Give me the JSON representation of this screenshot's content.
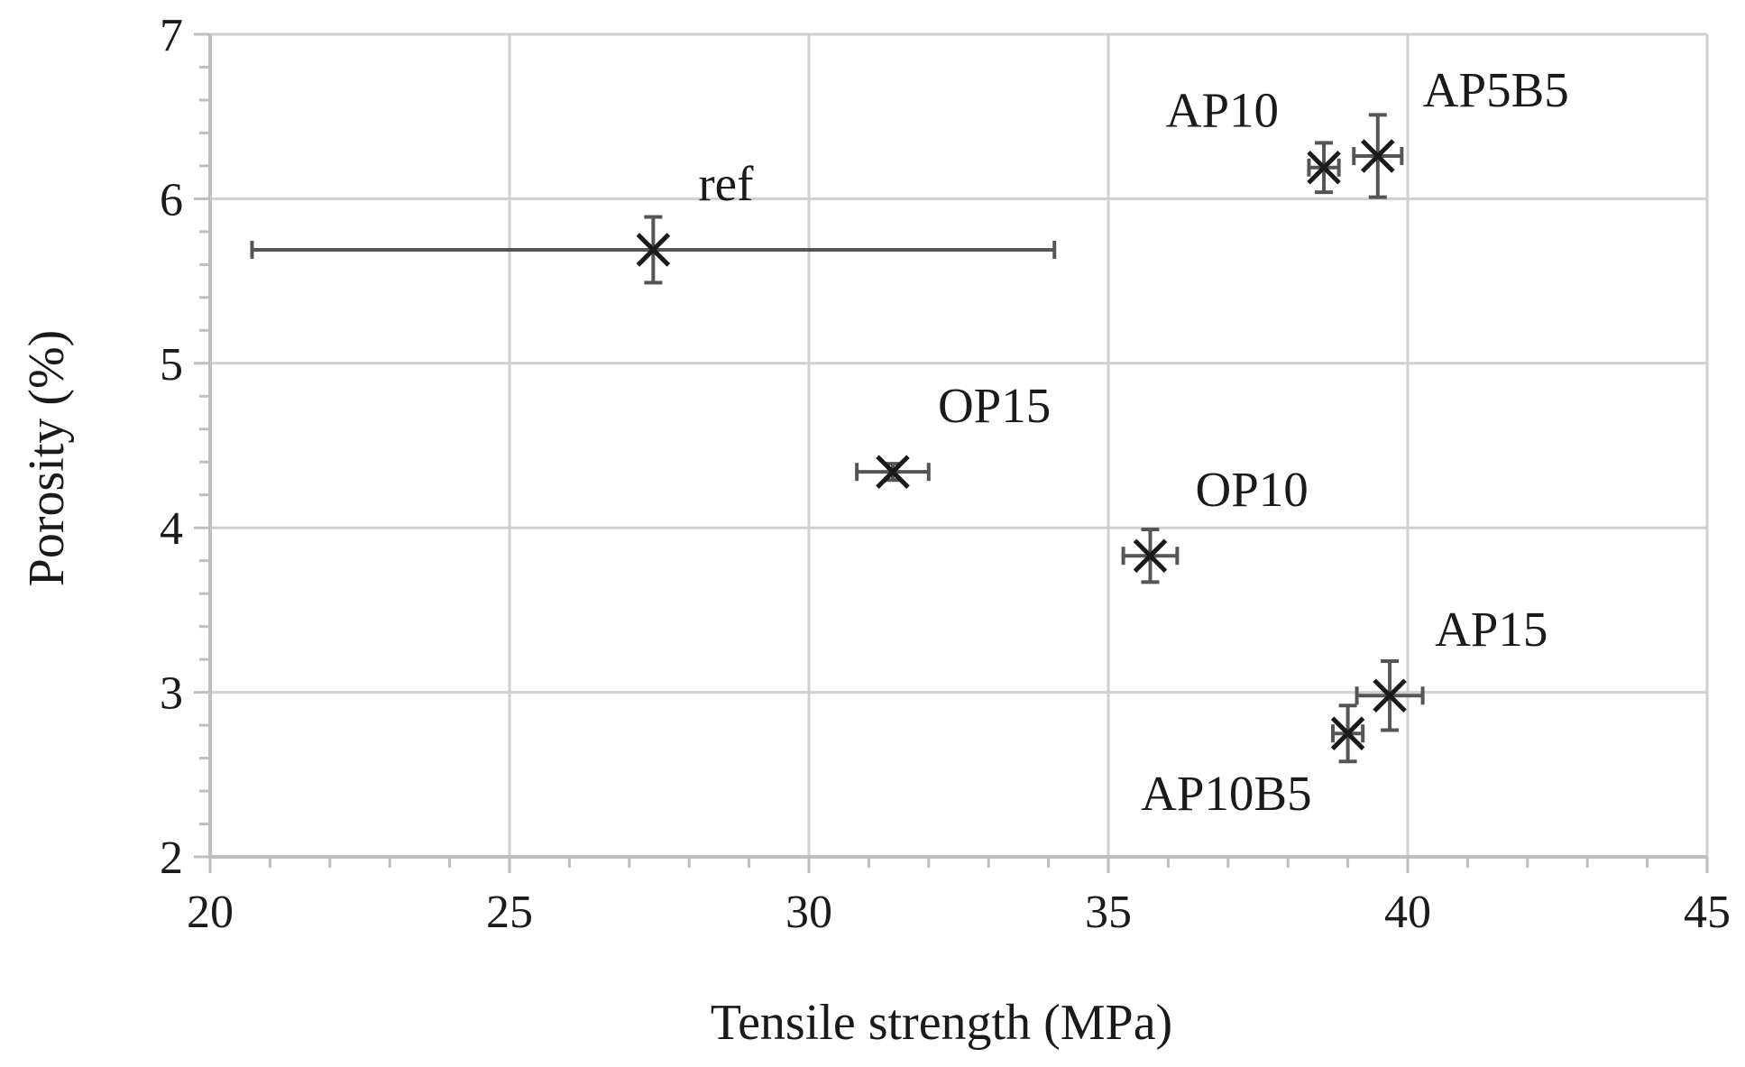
{
  "chart_data": {
    "type": "scatter",
    "title": "",
    "xlabel": "Tensile strength (MPa)",
    "ylabel": "Porosity (%)",
    "xlim": [
      20,
      45
    ],
    "ylim": [
      2,
      7
    ],
    "xticks": [
      20,
      25,
      30,
      35,
      40,
      45
    ],
    "yticks": [
      2,
      3,
      4,
      5,
      6,
      7
    ],
    "grid": true,
    "marker": "x",
    "colors": {
      "marker": "#1a1a1a",
      "errorbar": "#555555",
      "grid": "#d0d0d0",
      "axis": "#bfbfbf"
    },
    "points": [
      {
        "label": "ref",
        "x": 27.4,
        "y": 5.69,
        "xerr": 6.7,
        "yerr": 0.2,
        "label_pos": "top-right"
      },
      {
        "label": "AP10",
        "x": 38.6,
        "y": 6.19,
        "xerr": 0.25,
        "yerr": 0.15,
        "label_pos": "top-left"
      },
      {
        "label": "AP5B5",
        "x": 39.5,
        "y": 6.26,
        "xerr": 0.4,
        "yerr": 0.25,
        "label_pos": "top-right"
      },
      {
        "label": "OP15",
        "x": 31.4,
        "y": 4.34,
        "xerr": 0.6,
        "yerr": 0.05,
        "label_pos": "top-right"
      },
      {
        "label": "OP10",
        "x": 35.7,
        "y": 3.83,
        "xerr": 0.45,
        "yerr": 0.16,
        "label_pos": "top-right"
      },
      {
        "label": "AP15",
        "x": 39.7,
        "y": 2.98,
        "xerr": 0.55,
        "yerr": 0.21,
        "label_pos": "top-right"
      },
      {
        "label": "AP10B5",
        "x": 39.0,
        "y": 2.75,
        "xerr": 0.25,
        "yerr": 0.17,
        "label_pos": "bottom-left"
      }
    ]
  }
}
